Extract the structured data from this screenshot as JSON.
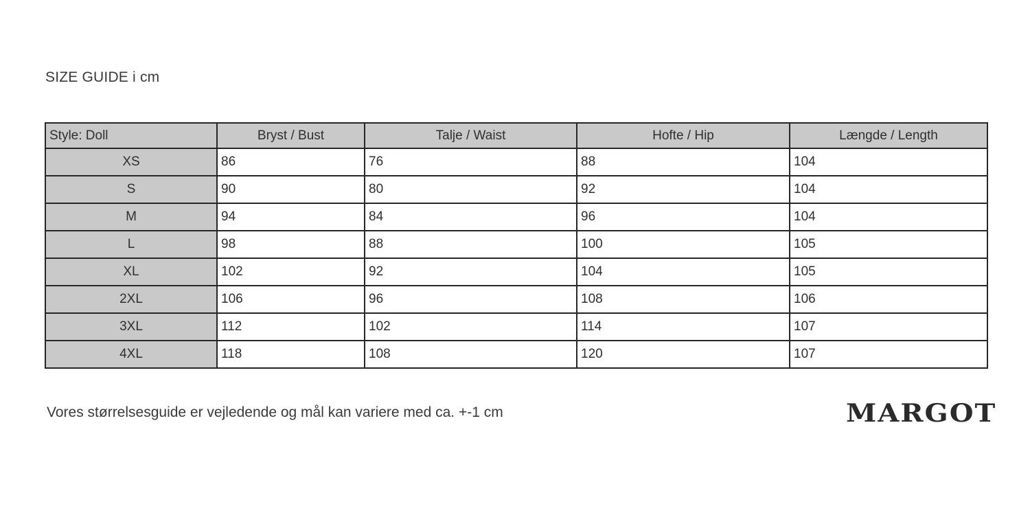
{
  "page": {
    "title": "SIZE GUIDE i cm",
    "footnote": "Vores størrelsesguide er vejledende og mål kan variere med ca. +-1 cm",
    "brand": "MARGOT"
  },
  "table": {
    "columns": [
      "Style: Doll",
      "Bryst / Bust",
      "Talje / Waist",
      "Hofte / Hip",
      "Længde / Length"
    ],
    "rows": [
      {
        "size": "XS",
        "values": [
          "86",
          "76",
          "88",
          "104"
        ]
      },
      {
        "size": "S",
        "values": [
          "90",
          "80",
          "92",
          "104"
        ]
      },
      {
        "size": "M",
        "values": [
          "94",
          "84",
          "96",
          "104"
        ]
      },
      {
        "size": "L",
        "values": [
          "98",
          "88",
          "100",
          "105"
        ]
      },
      {
        "size": "XL",
        "values": [
          "102",
          "92",
          "104",
          "105"
        ]
      },
      {
        "size": "2XL",
        "values": [
          "106",
          "96",
          "108",
          "106"
        ]
      },
      {
        "size": "3XL",
        "values": [
          "112",
          "102",
          "114",
          "107"
        ]
      },
      {
        "size": "4XL",
        "values": [
          "118",
          "108",
          "120",
          "107"
        ]
      }
    ]
  },
  "colors": {
    "header_bg": "#c9c9c9",
    "border": "#272727",
    "text": "#2f2f2f"
  }
}
